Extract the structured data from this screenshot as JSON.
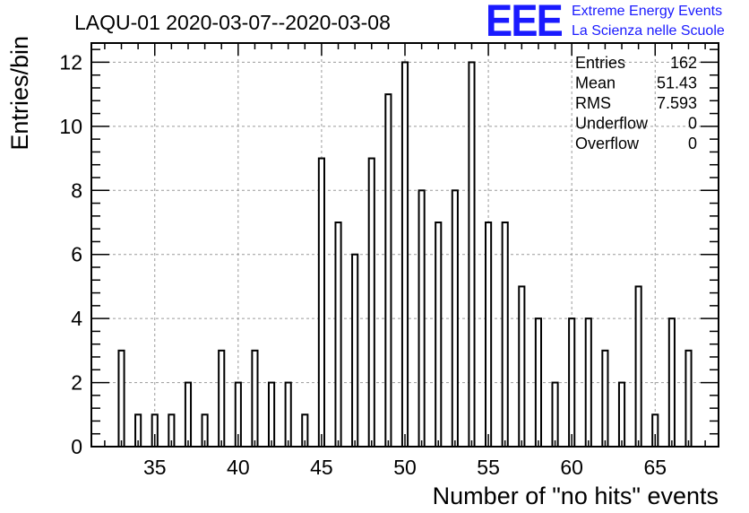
{
  "chart_data": {
    "type": "bar",
    "title": "LAQU-01 2020-03-07--2020-03-08",
    "xlabel": "Number of \"no hits\" events",
    "ylabel": "Entries/bin",
    "xlim": [
      31.2,
      68.8
    ],
    "ylim": [
      0,
      12.6
    ],
    "xticks": [
      35,
      40,
      45,
      50,
      55,
      60,
      65
    ],
    "yticks": [
      0,
      2,
      4,
      6,
      8,
      10,
      12
    ],
    "grid": true,
    "bars": [
      {
        "x": 33,
        "y": 3
      },
      {
        "x": 34,
        "y": 1
      },
      {
        "x": 35,
        "y": 1
      },
      {
        "x": 36,
        "y": 1
      },
      {
        "x": 37,
        "y": 2
      },
      {
        "x": 38,
        "y": 1
      },
      {
        "x": 39,
        "y": 3
      },
      {
        "x": 40,
        "y": 2
      },
      {
        "x": 41,
        "y": 3
      },
      {
        "x": 42,
        "y": 2
      },
      {
        "x": 43,
        "y": 2
      },
      {
        "x": 44,
        "y": 1
      },
      {
        "x": 45,
        "y": 9
      },
      {
        "x": 46,
        "y": 7
      },
      {
        "x": 47,
        "y": 6
      },
      {
        "x": 48,
        "y": 9
      },
      {
        "x": 49,
        "y": 11
      },
      {
        "x": 50,
        "y": 12
      },
      {
        "x": 51,
        "y": 8
      },
      {
        "x": 52,
        "y": 7
      },
      {
        "x": 53,
        "y": 8
      },
      {
        "x": 54,
        "y": 12
      },
      {
        "x": 55,
        "y": 7
      },
      {
        "x": 56,
        "y": 7
      },
      {
        "x": 57,
        "y": 5
      },
      {
        "x": 58,
        "y": 4
      },
      {
        "x": 59,
        "y": 2
      },
      {
        "x": 60,
        "y": 4
      },
      {
        "x": 61,
        "y": 4
      },
      {
        "x": 62,
        "y": 3
      },
      {
        "x": 63,
        "y": 2
      },
      {
        "x": 64,
        "y": 5
      },
      {
        "x": 65,
        "y": 1
      },
      {
        "x": 66,
        "y": 4
      },
      {
        "x": 67,
        "y": 3
      }
    ],
    "stats": [
      {
        "label": "Entries",
        "value": "162"
      },
      {
        "label": "Mean",
        "value": "51.43"
      },
      {
        "label": "RMS",
        "value": "7.593"
      },
      {
        "label": "Underflow",
        "value": "0"
      },
      {
        "label": "Overflow",
        "value": "0"
      }
    ]
  },
  "logo": {
    "mark": "EEE",
    "line1": "Extreme Energy Events",
    "line2": "La Scienza nelle Scuole"
  },
  "colors": {
    "bars": "#000000",
    "grid": "#9a9a9a",
    "logo": "#1a1aff"
  }
}
